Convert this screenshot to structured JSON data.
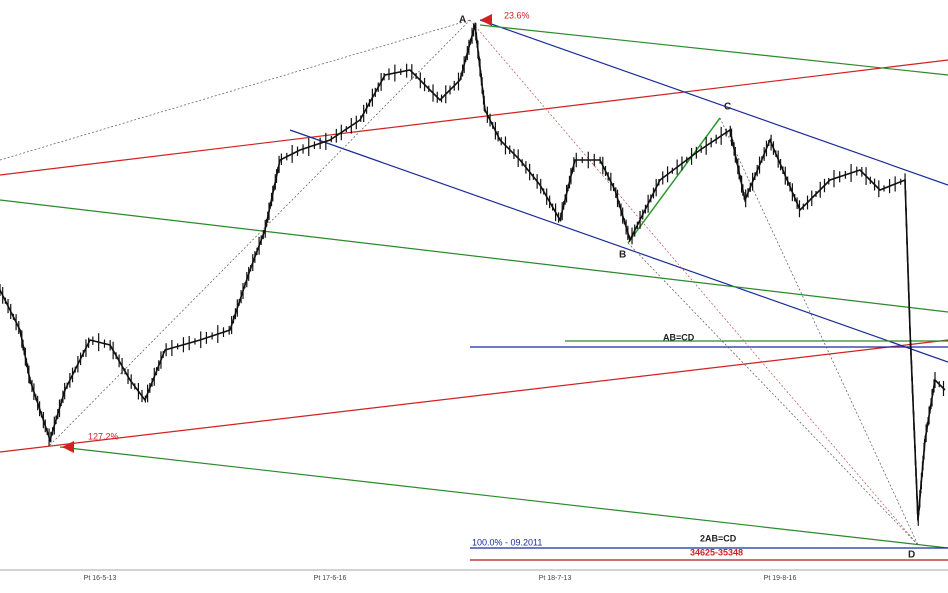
{
  "points": {
    "a": "A",
    "b": "B",
    "c": "C",
    "d": "D"
  },
  "annotations": {
    "fib_top": "23.6%",
    "fib_bottom": "127.2%",
    "ab_cd": "AB=CD",
    "two_ab_cd": "2AB=CD",
    "level_100": "100.0% - 09.2011",
    "target_zone": "34625-35348"
  },
  "x_axis_labels": [
    "Pt 16-5-13",
    "Pt 17-6-16",
    "Pt 18-7-13",
    "Pt 19-8-16"
  ]
}
